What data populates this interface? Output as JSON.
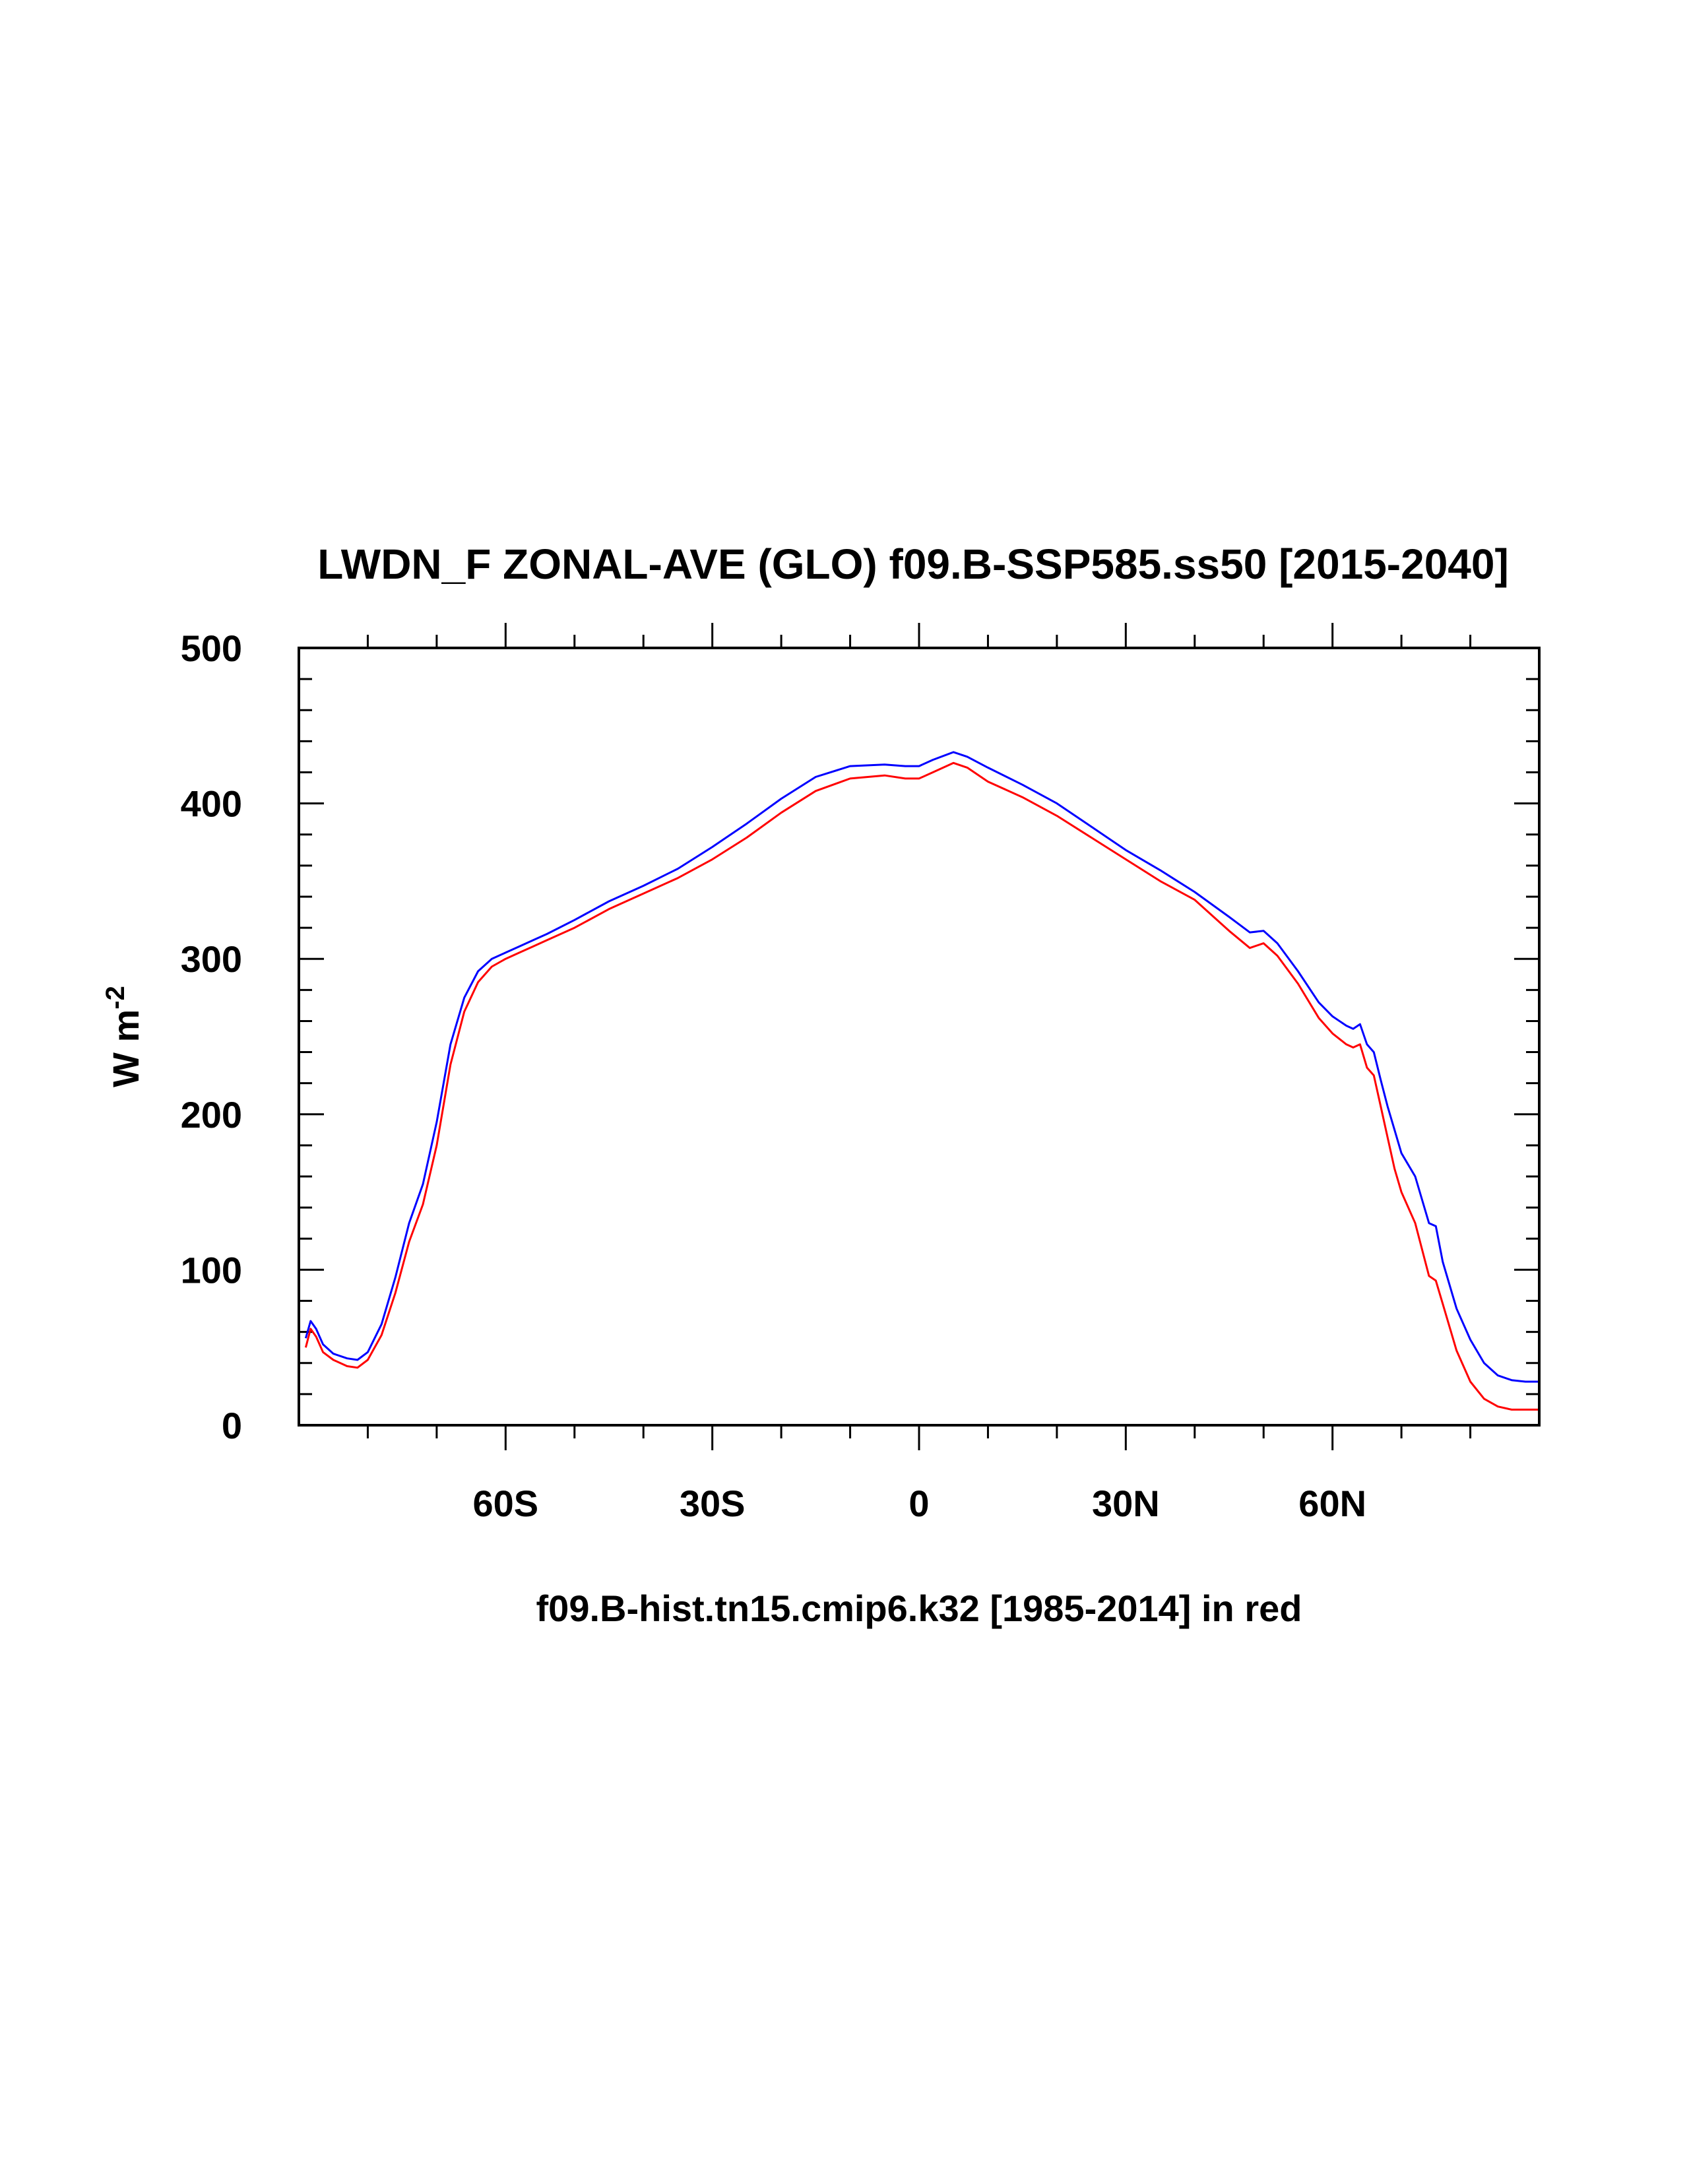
{
  "chart_data": {
    "type": "line",
    "title": "LWDN_F ZONAL-AVE (GLO) f09.B-SSP585.ss50 [2015-2040]",
    "ylabel": "W m",
    "ylabel_exponent": "-2",
    "xcaption": "f09.B-hist.tn15.cmip6.k32 [1985-2014] in red",
    "xlim": [
      -90,
      90
    ],
    "ylim": [
      0,
      500
    ],
    "x_ticks": [
      {
        "value": -60,
        "label": "60S"
      },
      {
        "value": -30,
        "label": "30S"
      },
      {
        "value": 0,
        "label": "0"
      },
      {
        "value": 30,
        "label": "30N"
      },
      {
        "value": 60,
        "label": "60N"
      }
    ],
    "y_ticks": [
      {
        "value": 0,
        "label": "0"
      },
      {
        "value": 100,
        "label": "100"
      },
      {
        "value": 200,
        "label": "200"
      },
      {
        "value": 300,
        "label": "300"
      },
      {
        "value": 400,
        "label": "400"
      },
      {
        "value": 500,
        "label": "500"
      }
    ],
    "series": [
      {
        "name": "f09.B-SSP585.ss50 [2015-2040]",
        "color": "#0000ff",
        "x": [
          -89,
          -88.3,
          -87.5,
          -86.5,
          -85,
          -83,
          -81.5,
          -80,
          -78,
          -76,
          -74,
          -72,
          -70,
          -68,
          -66,
          -64,
          -62,
          -60,
          -58,
          -56,
          -54,
          -50,
          -45,
          -40,
          -35,
          -30,
          -25,
          -20,
          -15,
          -10,
          -5,
          -2,
          0,
          2,
          5,
          7,
          10,
          15,
          20,
          25,
          30,
          35,
          40,
          45,
          48,
          50,
          52,
          55,
          58,
          60,
          62,
          63,
          64,
          65,
          66,
          67,
          68,
          69,
          70,
          72,
          74,
          75,
          76,
          78,
          80,
          82,
          84,
          86,
          88,
          90
        ],
        "values": [
          56,
          67,
          62,
          52,
          46,
          43,
          42,
          47,
          65,
          95,
          130,
          155,
          195,
          245,
          275,
          292,
          300,
          304,
          308,
          312,
          316,
          325,
          337,
          347,
          358,
          372,
          387,
          403,
          417,
          424,
          425,
          424,
          424,
          428,
          433,
          430,
          423,
          412,
          400,
          385,
          370,
          357,
          343,
          327,
          317,
          318,
          310,
          292,
          272,
          263,
          257,
          255,
          258,
          245,
          240,
          222,
          205,
          190,
          175,
          160,
          130,
          128,
          105,
          75,
          55,
          40,
          32,
          29,
          28,
          28
        ]
      },
      {
        "name": "f09.B-hist.tn15.cmip6.k32 [1985-2014]",
        "color": "#ff0000",
        "x": [
          -89,
          -88.3,
          -87.5,
          -86.5,
          -85,
          -83,
          -81.5,
          -80,
          -78,
          -76,
          -74,
          -72,
          -70,
          -68,
          -66,
          -64,
          -62,
          -60,
          -58,
          -56,
          -54,
          -50,
          -45,
          -40,
          -35,
          -30,
          -25,
          -20,
          -15,
          -10,
          -5,
          -2,
          0,
          2,
          5,
          7,
          10,
          15,
          20,
          25,
          30,
          35,
          40,
          45,
          48,
          50,
          52,
          55,
          58,
          60,
          62,
          63,
          64,
          65,
          66,
          67,
          68,
          69,
          70,
          72,
          74,
          75,
          76,
          78,
          80,
          82,
          84,
          86,
          88,
          90
        ],
        "values": [
          50,
          62,
          57,
          47,
          42,
          38,
          37,
          42,
          58,
          85,
          118,
          142,
          180,
          232,
          266,
          285,
          295,
          300,
          304,
          308,
          312,
          320,
          332,
          342,
          352,
          364,
          378,
          394,
          408,
          416,
          418,
          416,
          416,
          420,
          426,
          423,
          414,
          404,
          392,
          378,
          364,
          350,
          338,
          318,
          307,
          310,
          302,
          284,
          262,
          252,
          245,
          243,
          245,
          230,
          225,
          205,
          185,
          165,
          150,
          130,
          96,
          93,
          78,
          48,
          28,
          17,
          12,
          10,
          10,
          10
        ]
      }
    ]
  }
}
